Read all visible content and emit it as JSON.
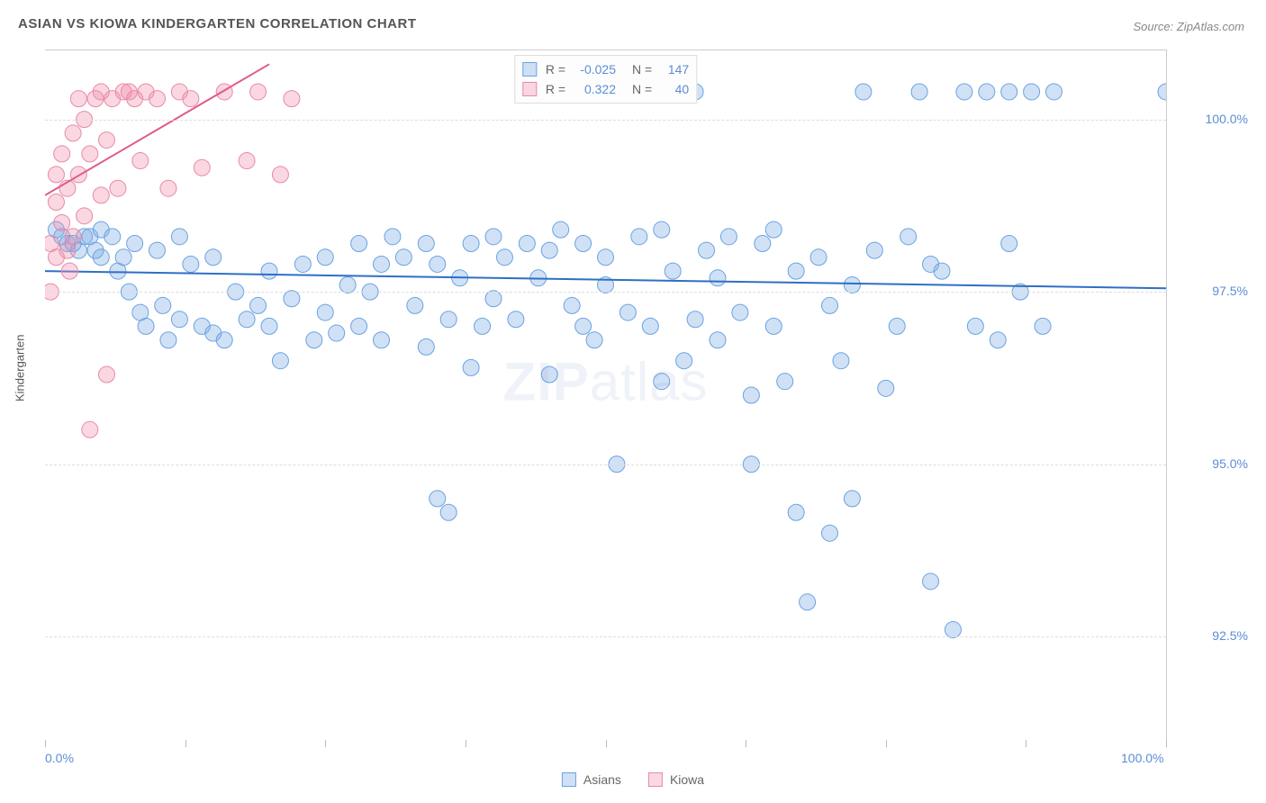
{
  "title": "ASIAN VS KIOWA KINDERGARTEN CORRELATION CHART",
  "source": "Source: ZipAtlas.com",
  "y_axis_label": "Kindergarten",
  "watermark_bold": "ZIP",
  "watermark_light": "atlas",
  "chart": {
    "type": "scatter",
    "background_color": "#ffffff",
    "grid_color": "#dddddd",
    "xlim": [
      0,
      100
    ],
    "ylim": [
      91,
      101
    ],
    "x_ticks": [
      0,
      12.5,
      25,
      37.5,
      50,
      62.5,
      75,
      87.5,
      100
    ],
    "x_tick_labels": {
      "0": "0.0%",
      "100": "100.0%"
    },
    "y_grid": [
      92.5,
      95.0,
      97.5,
      100.0
    ],
    "y_tick_labels": {
      "92.5": "92.5%",
      "95.0": "95.0%",
      "97.5": "97.5%",
      "100.0": "100.0%"
    },
    "label_fontsize": 14,
    "label_color": "#5b8dd6",
    "marker_radius": 9,
    "series": [
      {
        "name": "Asians",
        "color_fill": "rgba(120,170,230,0.35)",
        "color_stroke": "#6aa3e0",
        "trend_color": "#2f6fc4",
        "trend": {
          "x1": 0,
          "y1": 97.8,
          "x2": 100,
          "y2": 97.55
        },
        "stats": {
          "R": "-0.025",
          "N": "147"
        },
        "points": [
          [
            1,
            98.4
          ],
          [
            1.5,
            98.3
          ],
          [
            2,
            98.2
          ],
          [
            2.5,
            98.2
          ],
          [
            3,
            98.1
          ],
          [
            3.5,
            98.3
          ],
          [
            4,
            98.3
          ],
          [
            4.5,
            98.1
          ],
          [
            5,
            98.4
          ],
          [
            5,
            98.0
          ],
          [
            6,
            98.3
          ],
          [
            6.5,
            97.8
          ],
          [
            7,
            98.0
          ],
          [
            7.5,
            97.5
          ],
          [
            8,
            98.2
          ],
          [
            8.5,
            97.2
          ],
          [
            9,
            97.0
          ],
          [
            10,
            98.1
          ],
          [
            10.5,
            97.3
          ],
          [
            11,
            96.8
          ],
          [
            12,
            97.1
          ],
          [
            12,
            98.3
          ],
          [
            13,
            97.9
          ],
          [
            14,
            97.0
          ],
          [
            15,
            98.0
          ],
          [
            15,
            96.9
          ],
          [
            16,
            96.8
          ],
          [
            17,
            97.5
          ],
          [
            18,
            97.1
          ],
          [
            19,
            97.3
          ],
          [
            20,
            97.0
          ],
          [
            20,
            97.8
          ],
          [
            21,
            96.5
          ],
          [
            22,
            97.4
          ],
          [
            23,
            97.9
          ],
          [
            24,
            96.8
          ],
          [
            25,
            98.0
          ],
          [
            25,
            97.2
          ],
          [
            26,
            96.9
          ],
          [
            27,
            97.6
          ],
          [
            28,
            97.0
          ],
          [
            28,
            98.2
          ],
          [
            29,
            97.5
          ],
          [
            30,
            97.9
          ],
          [
            30,
            96.8
          ],
          [
            31,
            98.3
          ],
          [
            32,
            98.0
          ],
          [
            33,
            97.3
          ],
          [
            34,
            98.2
          ],
          [
            34,
            96.7
          ],
          [
            35,
            97.9
          ],
          [
            35,
            94.5
          ],
          [
            36,
            97.1
          ],
          [
            36,
            94.3
          ],
          [
            37,
            97.7
          ],
          [
            38,
            98.2
          ],
          [
            38,
            96.4
          ],
          [
            39,
            97.0
          ],
          [
            40,
            98.3
          ],
          [
            40,
            97.4
          ],
          [
            41,
            98.0
          ],
          [
            42,
            97.1
          ],
          [
            43,
            98.2
          ],
          [
            44,
            97.7
          ],
          [
            45,
            96.3
          ],
          [
            45,
            98.1
          ],
          [
            46,
            98.4
          ],
          [
            47,
            97.3
          ],
          [
            48,
            97.0
          ],
          [
            48,
            98.2
          ],
          [
            49,
            96.8
          ],
          [
            50,
            97.6
          ],
          [
            50,
            98.0
          ],
          [
            51,
            95.0
          ],
          [
            52,
            97.2
          ],
          [
            53,
            98.3
          ],
          [
            54,
            97.0
          ],
          [
            55,
            96.2
          ],
          [
            55,
            98.4
          ],
          [
            56,
            97.8
          ],
          [
            57,
            96.5
          ],
          [
            58,
            100.4
          ],
          [
            58,
            97.1
          ],
          [
            59,
            98.1
          ],
          [
            60,
            96.8
          ],
          [
            60,
            97.7
          ],
          [
            61,
            98.3
          ],
          [
            62,
            97.2
          ],
          [
            63,
            95.0
          ],
          [
            63,
            96.0
          ],
          [
            64,
            98.2
          ],
          [
            65,
            97.0
          ],
          [
            65,
            98.4
          ],
          [
            66,
            96.2
          ],
          [
            67,
            94.3
          ],
          [
            67,
            97.8
          ],
          [
            68,
            93.0
          ],
          [
            69,
            98.0
          ],
          [
            70,
            97.3
          ],
          [
            70,
            94.0
          ],
          [
            71,
            96.5
          ],
          [
            72,
            94.5
          ],
          [
            72,
            97.6
          ],
          [
            73,
            100.4
          ],
          [
            74,
            98.1
          ],
          [
            75,
            96.1
          ],
          [
            76,
            97.0
          ],
          [
            77,
            98.3
          ],
          [
            78,
            100.4
          ],
          [
            79,
            97.9
          ],
          [
            79,
            93.3
          ],
          [
            80,
            97.8
          ],
          [
            81,
            92.6
          ],
          [
            82,
            100.4
          ],
          [
            83,
            97.0
          ],
          [
            84,
            100.4
          ],
          [
            85,
            96.8
          ],
          [
            86,
            98.2
          ],
          [
            86,
            100.4
          ],
          [
            87,
            97.5
          ],
          [
            88,
            100.4
          ],
          [
            89,
            97.0
          ],
          [
            90,
            100.4
          ],
          [
            100,
            100.4
          ]
        ]
      },
      {
        "name": "Kiowa",
        "color_fill": "rgba(240,140,170,0.35)",
        "color_stroke": "#e88aa8",
        "trend_color": "#e05a88",
        "trend": {
          "x1": 0,
          "y1": 98.9,
          "x2": 20,
          "y2": 100.8
        },
        "stats": {
          "R": "0.322",
          "N": "40"
        },
        "points": [
          [
            0.5,
            98.2
          ],
          [
            0.5,
            97.5
          ],
          [
            1,
            98.8
          ],
          [
            1,
            99.2
          ],
          [
            1,
            98.0
          ],
          [
            1.5,
            99.5
          ],
          [
            1.5,
            98.5
          ],
          [
            2,
            99.0
          ],
          [
            2,
            98.1
          ],
          [
            2.2,
            97.8
          ],
          [
            2.5,
            99.8
          ],
          [
            2.5,
            98.3
          ],
          [
            3,
            100.3
          ],
          [
            3,
            99.2
          ],
          [
            3.5,
            98.6
          ],
          [
            3.5,
            100.0
          ],
          [
            4,
            95.5
          ],
          [
            4,
            99.5
          ],
          [
            4.5,
            100.3
          ],
          [
            5,
            98.9
          ],
          [
            5,
            100.4
          ],
          [
            5.5,
            96.3
          ],
          [
            5.5,
            99.7
          ],
          [
            6,
            100.3
          ],
          [
            6.5,
            99.0
          ],
          [
            7,
            100.4
          ],
          [
            7.5,
            100.4
          ],
          [
            8,
            100.3
          ],
          [
            8.5,
            99.4
          ],
          [
            9,
            100.4
          ],
          [
            10,
            100.3
          ],
          [
            11,
            99.0
          ],
          [
            12,
            100.4
          ],
          [
            13,
            100.3
          ],
          [
            14,
            99.3
          ],
          [
            16,
            100.4
          ],
          [
            18,
            99.4
          ],
          [
            19,
            100.4
          ],
          [
            21,
            99.2
          ],
          [
            22,
            100.3
          ]
        ]
      }
    ]
  },
  "stats_box": {
    "r_label": "R =",
    "n_label": "N ="
  },
  "bottom_legend": [
    {
      "label": "Asians",
      "fill": "rgba(120,170,230,0.35)",
      "stroke": "#6aa3e0"
    },
    {
      "label": "Kiowa",
      "fill": "rgba(240,140,170,0.35)",
      "stroke": "#e88aa8"
    }
  ]
}
